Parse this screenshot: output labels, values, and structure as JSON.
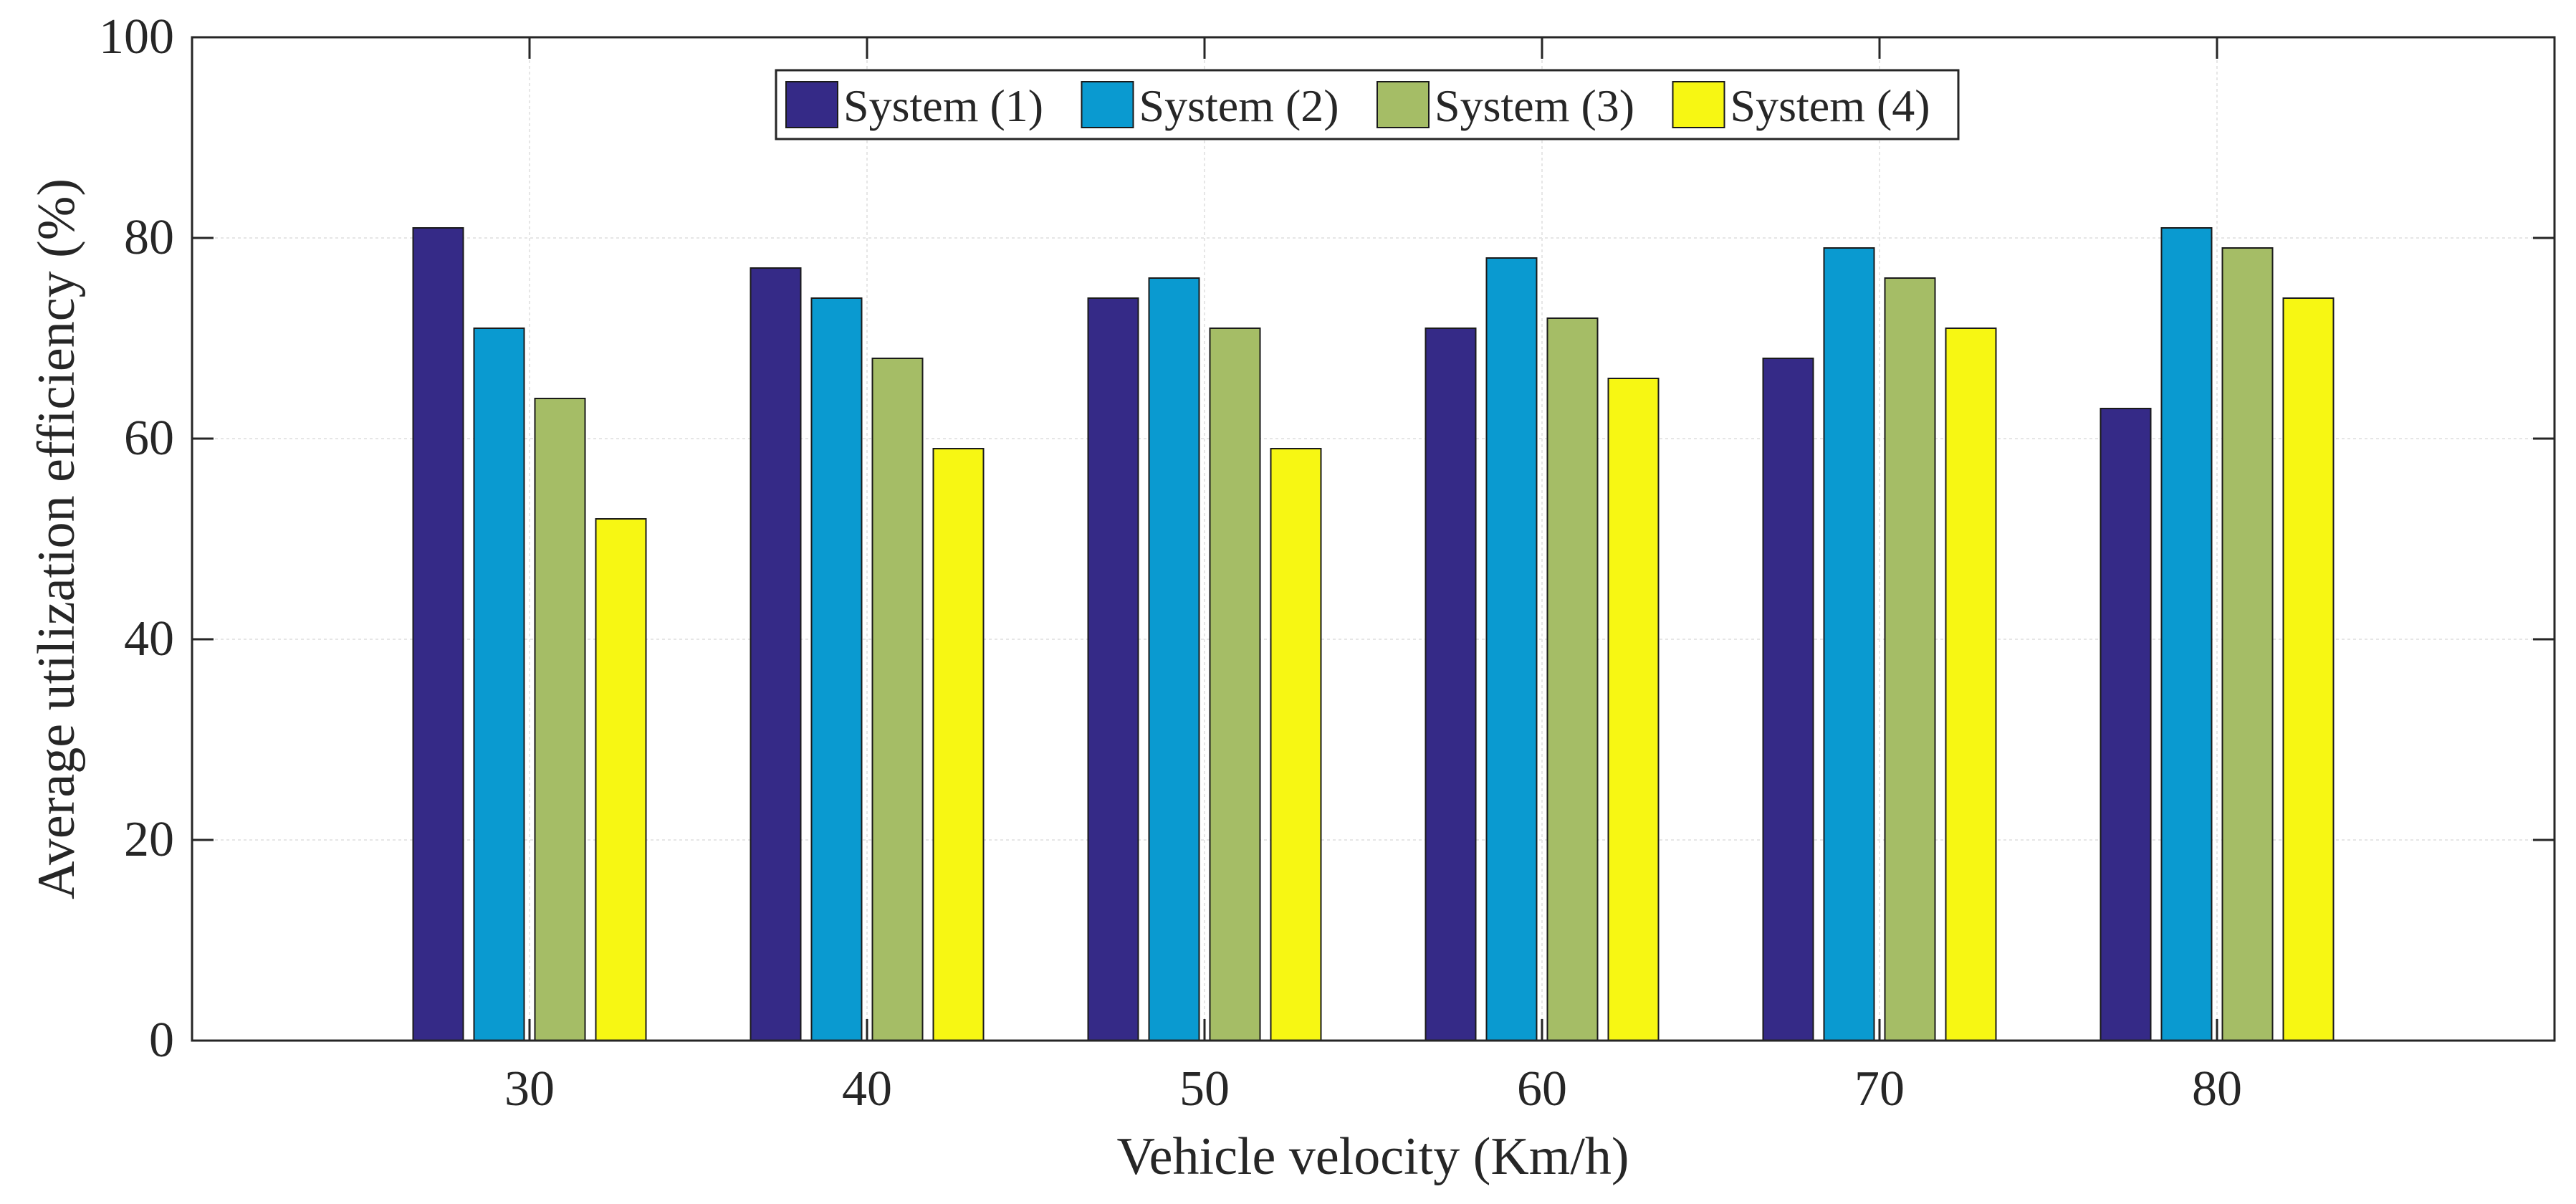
{
  "chart_data": {
    "type": "bar",
    "title": "",
    "xlabel": "Vehicle velocity (Km/h)",
    "ylabel": "Average utilization efficiency (%)",
    "categories": [
      "30",
      "40",
      "50",
      "60",
      "70",
      "80"
    ],
    "ylim": [
      0,
      100
    ],
    "yticks": [
      "0",
      "20",
      "40",
      "60",
      "80",
      "100"
    ],
    "grid": true,
    "legend_position": "top-center",
    "series": [
      {
        "name": "System (1)",
        "color": "#352a87",
        "values": [
          81,
          77,
          74,
          71,
          68,
          63
        ]
      },
      {
        "name": "System (2)",
        "color": "#0a9ad0",
        "values": [
          71,
          74,
          76,
          78,
          79,
          81
        ]
      },
      {
        "name": "System (3)",
        "color": "#a5bd66",
        "values": [
          64,
          68,
          71,
          72,
          76,
          79
        ]
      },
      {
        "name": "System (4)",
        "color": "#f7f713",
        "values": [
          52,
          59,
          59,
          66,
          71,
          74
        ]
      }
    ]
  }
}
